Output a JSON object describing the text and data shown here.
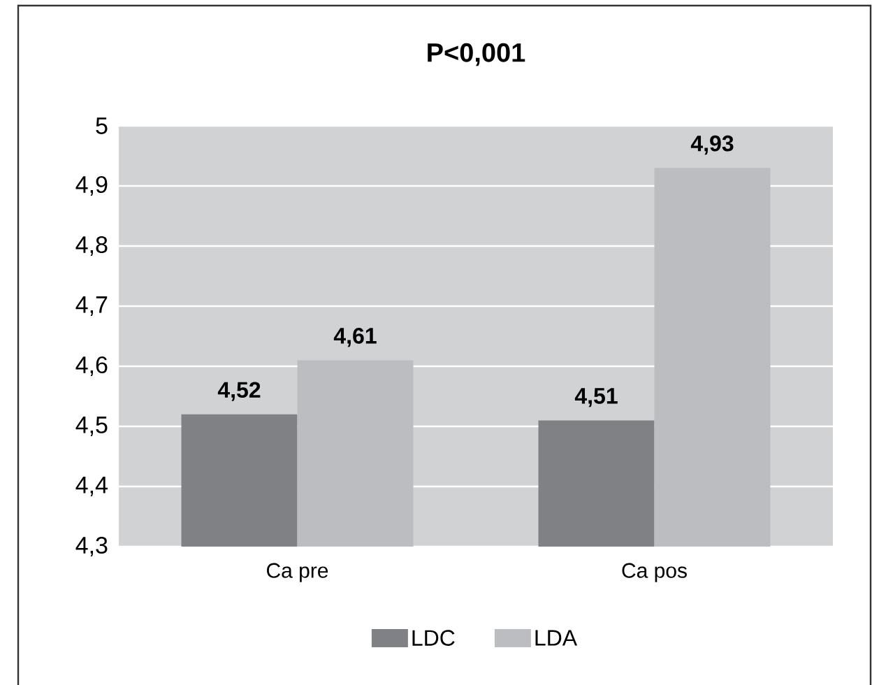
{
  "chart_data": {
    "type": "bar",
    "title": "P<0,001",
    "categories": [
      "Ca pre",
      "Ca pos"
    ],
    "series": [
      {
        "name": "LDC",
        "color": "#808184",
        "values": [
          4.52,
          4.51
        ],
        "value_labels": [
          "4,52",
          "4,51"
        ]
      },
      {
        "name": "LDA",
        "color": "#bcbdc0",
        "values": [
          4.61,
          4.93
        ],
        "value_labels": [
          "4,61",
          "4,93"
        ]
      }
    ],
    "ylim": [
      4.3,
      5
    ],
    "yticks": [
      {
        "value": 4.3,
        "label": "4,3"
      },
      {
        "value": 4.4,
        "label": "4,4"
      },
      {
        "value": 4.5,
        "label": "4,5"
      },
      {
        "value": 4.6,
        "label": "4,6"
      },
      {
        "value": 4.7,
        "label": "4,7"
      },
      {
        "value": 4.8,
        "label": "4,8"
      },
      {
        "value": 4.9,
        "label": "4,9"
      },
      5
    ],
    "grid": "y",
    "legend": "bottom"
  }
}
